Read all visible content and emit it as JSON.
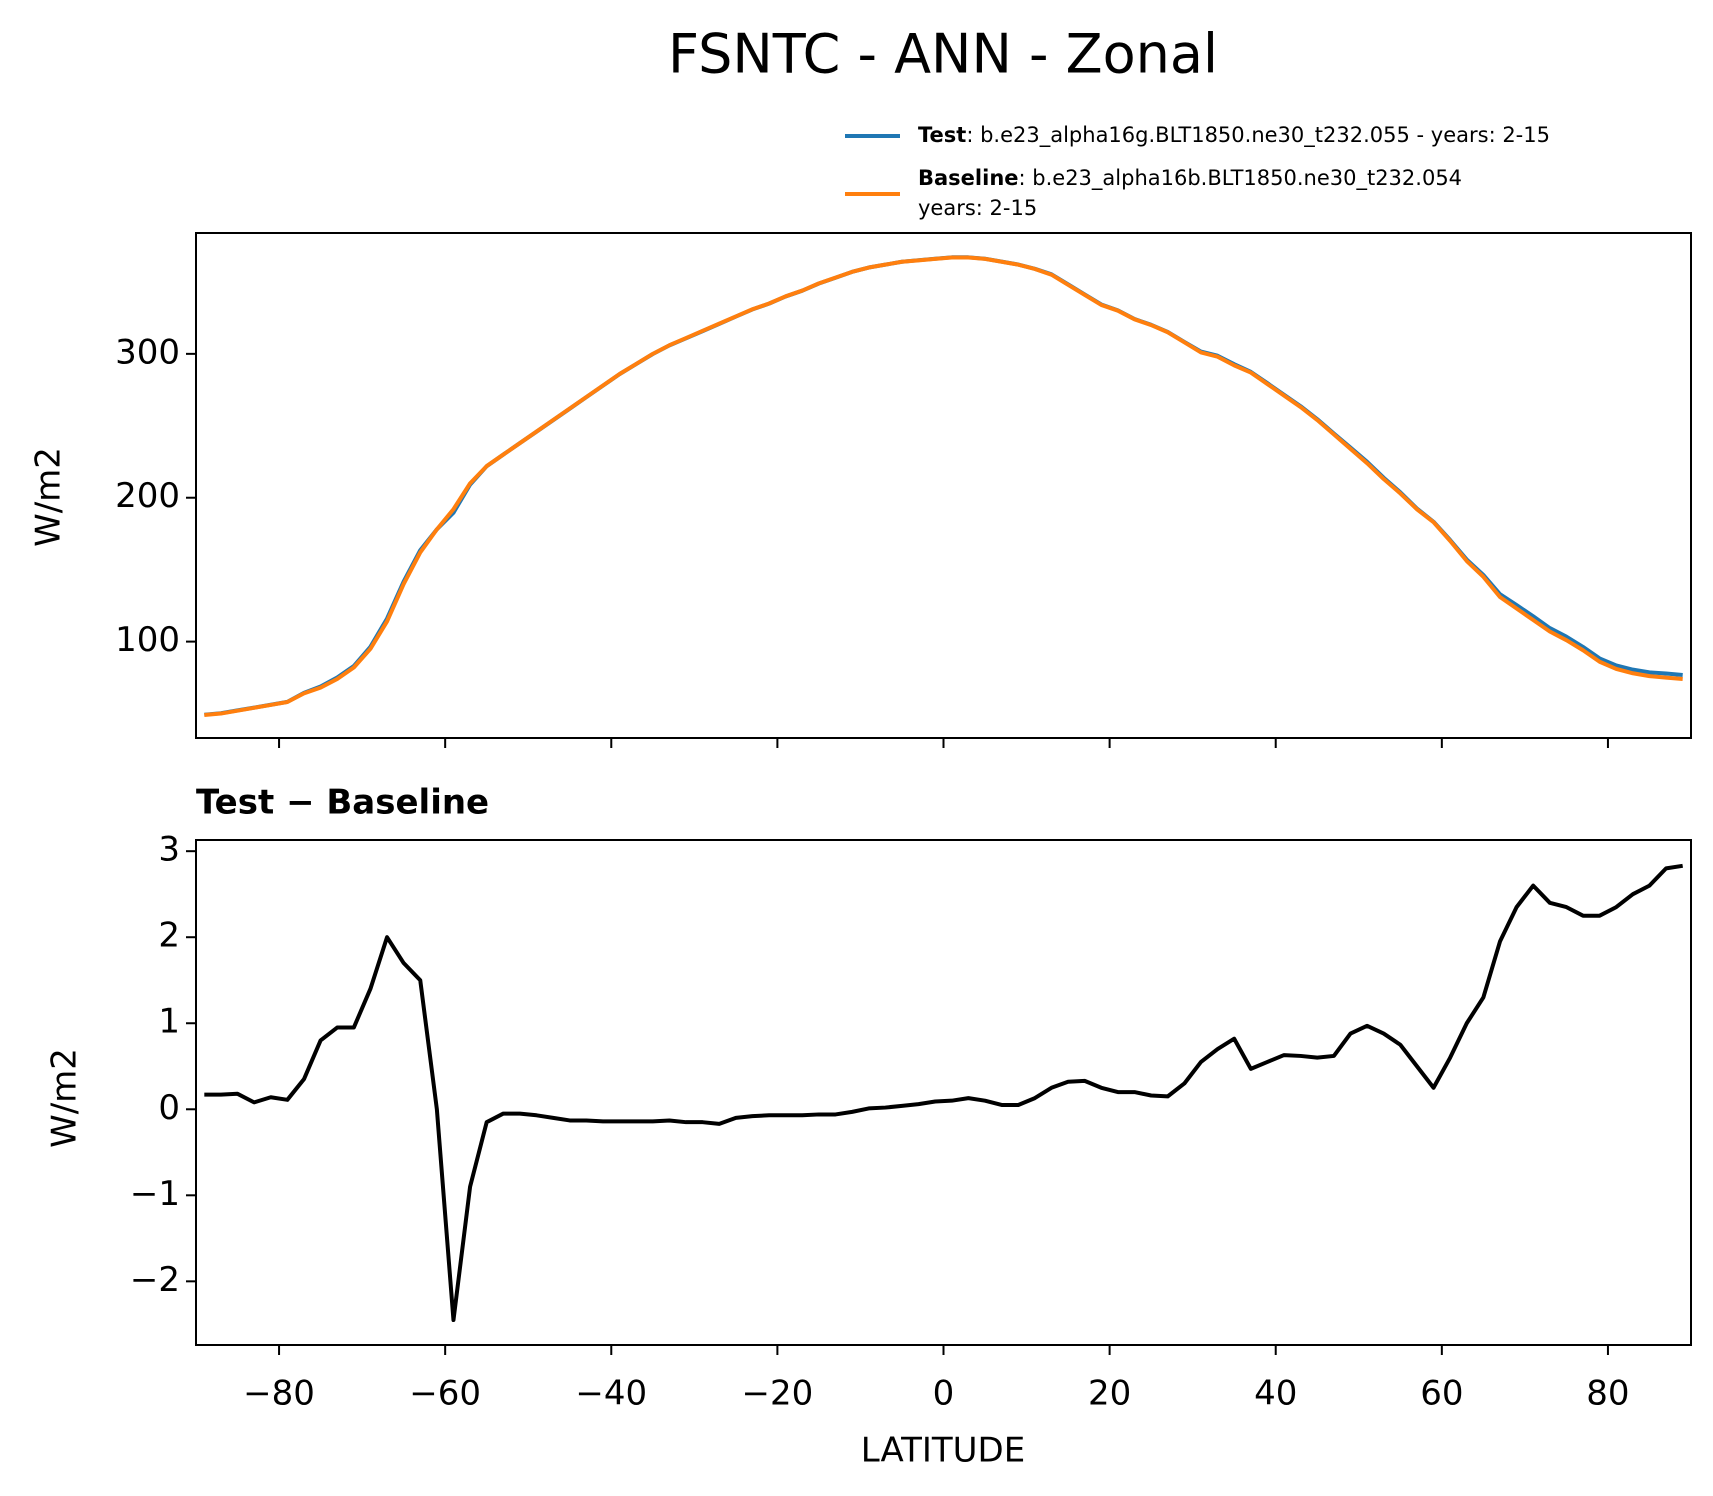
{
  "chart_data": [
    {
      "type": "line",
      "title": "FSNTC - ANN - Zonal",
      "ylabel": "W/m2",
      "x": [
        -89,
        -87,
        -85,
        -83,
        -81,
        -79,
        -77,
        -75,
        -73,
        -71,
        -69,
        -67,
        -65,
        -63,
        -61,
        -59,
        -57,
        -55,
        -53,
        -51,
        -49,
        -47,
        -45,
        -43,
        -41,
        -39,
        -37,
        -35,
        -33,
        -31,
        -29,
        -27,
        -25,
        -23,
        -21,
        -19,
        -17,
        -15,
        -13,
        -11,
        -9,
        -7,
        -5,
        -3,
        -1,
        1,
        3,
        5,
        7,
        9,
        11,
        13,
        15,
        17,
        19,
        21,
        23,
        25,
        27,
        29,
        31,
        33,
        35,
        37,
        39,
        41,
        43,
        45,
        47,
        49,
        51,
        53,
        55,
        57,
        59,
        61,
        63,
        65,
        67,
        69,
        71,
        73,
        75,
        77,
        79,
        81,
        83,
        85,
        87,
        89
      ],
      "series": [
        {
          "name": "Test",
          "description": [
            ": b.e23_alpha16g.BLT1850.ne30_t232.055 - years: 2-15"
          ],
          "color": "#1f77b4",
          "values": [
            49.2,
            50.2,
            52.2,
            54.1,
            56.1,
            58.1,
            64.4,
            68.8,
            75.0,
            83.0,
            96.4,
            116.0,
            141.7,
            163.5,
            178.0,
            189.6,
            209.1,
            221.9,
            230.0,
            238.0,
            245.9,
            253.9,
            261.9,
            269.9,
            277.9,
            285.9,
            292.9,
            299.9,
            305.9,
            310.8,
            315.8,
            320.8,
            325.9,
            330.9,
            334.9,
            339.9,
            343.9,
            348.9,
            352.9,
            357.0,
            360.0,
            362.0,
            364.0,
            365.1,
            366.1,
            367.1,
            367.1,
            366.1,
            364.1,
            362.1,
            359.1,
            355.3,
            348.3,
            341.3,
            334.3,
            330.2,
            324.2,
            320.2,
            315.2,
            308.3,
            301.6,
            298.7,
            292.8,
            287.5,
            279.6,
            271.6,
            263.6,
            254.6,
            244.6,
            234.9,
            225.0,
            213.9,
            203.8,
            192.5,
            183.3,
            170.6,
            157.0,
            146.3,
            133.0,
            125.4,
            117.6,
            109.4,
            103.4,
            96.3,
            88.3,
            83.4,
            80.5,
            78.6,
            77.8,
            76.8
          ]
        },
        {
          "name": "Baseline",
          "description": [
            ": b.e23_alpha16b.BLT1850.ne30_t232.054",
            "years: 2-15"
          ],
          "color": "#ff7f0e",
          "values": [
            49,
            50,
            52,
            54,
            56,
            58,
            64,
            68,
            74,
            82,
            95,
            114,
            140,
            162,
            178,
            192,
            210,
            222,
            230,
            238,
            246,
            254,
            262,
            270,
            278,
            286,
            293,
            300,
            306,
            311,
            316,
            321,
            326,
            331,
            335,
            340,
            344,
            349,
            353,
            357,
            360,
            362,
            364,
            365,
            366,
            367,
            367,
            366,
            364,
            362,
            359,
            355,
            348,
            341,
            334,
            330,
            324,
            320,
            315,
            308,
            301,
            298,
            292,
            287,
            279,
            271,
            263,
            254,
            244,
            234,
            224,
            213,
            203,
            192,
            183,
            170,
            156,
            145,
            131,
            123,
            115,
            107,
            101,
            94,
            86,
            81,
            78,
            76,
            75,
            74
          ]
        }
      ],
      "xlim": [
        -90,
        90
      ],
      "xticks": [
        -80,
        -60,
        -40,
        -20,
        0,
        20,
        40,
        60,
        80
      ],
      "ylim": [
        33,
        384
      ],
      "yticks": [
        100,
        200,
        300
      ]
    },
    {
      "type": "line",
      "title": "Test − Baseline",
      "ylabel": "W/m2",
      "xlabel": "LATITUDE",
      "x": [
        -89,
        -87,
        -85,
        -83,
        -81,
        -79,
        -77,
        -75,
        -73,
        -71,
        -69,
        -67,
        -65,
        -63,
        -61,
        -59,
        -57,
        -55,
        -53,
        -51,
        -49,
        -47,
        -45,
        -43,
        -41,
        -39,
        -37,
        -35,
        -33,
        -31,
        -29,
        -27,
        -25,
        -23,
        -21,
        -19,
        -17,
        -15,
        -13,
        -11,
        -9,
        -7,
        -5,
        -3,
        -1,
        1,
        3,
        5,
        7,
        9,
        11,
        13,
        15,
        17,
        19,
        21,
        23,
        25,
        27,
        29,
        31,
        33,
        35,
        37,
        39,
        41,
        43,
        45,
        47,
        49,
        51,
        53,
        55,
        57,
        59,
        61,
        63,
        65,
        67,
        69,
        71,
        73,
        75,
        77,
        79,
        81,
        83,
        85,
        87,
        89
      ],
      "series": [
        {
          "color": "#000000",
          "values": [
            0.17,
            0.17,
            0.18,
            0.08,
            0.14,
            0.11,
            0.35,
            0.8,
            0.95,
            0.95,
            1.4,
            2.0,
            1.7,
            1.5,
            0.0,
            -2.45,
            -0.9,
            -0.15,
            -0.05,
            -0.05,
            -0.07,
            -0.1,
            -0.13,
            -0.13,
            -0.14,
            -0.14,
            -0.14,
            -0.14,
            -0.13,
            -0.15,
            -0.15,
            -0.17,
            -0.1,
            -0.08,
            -0.07,
            -0.07,
            -0.07,
            -0.06,
            -0.06,
            -0.03,
            0.01,
            0.02,
            0.04,
            0.06,
            0.09,
            0.1,
            0.13,
            0.1,
            0.05,
            0.05,
            0.13,
            0.25,
            0.32,
            0.33,
            0.25,
            0.2,
            0.2,
            0.16,
            0.15,
            0.3,
            0.55,
            0.7,
            0.82,
            0.47,
            0.55,
            0.63,
            0.62,
            0.6,
            0.62,
            0.88,
            0.97,
            0.88,
            0.75,
            0.5,
            0.25,
            0.6,
            1.0,
            1.3,
            1.95,
            2.35,
            2.6,
            2.4,
            2.35,
            2.25,
            2.25,
            2.35,
            2.5,
            2.6,
            2.8,
            2.83
          ]
        }
      ],
      "xlim": [
        -90,
        90
      ],
      "xticks": [
        {
          "value": -80,
          "label": "−80"
        },
        {
          "value": -60,
          "label": "−60"
        },
        {
          "value": -40,
          "label": "−40"
        },
        {
          "value": -20,
          "label": "−20"
        },
        0,
        20,
        40,
        60,
        80
      ],
      "ylim": [
        -2.74,
        3.13
      ],
      "yticks": [
        {
          "value": -2,
          "label": "−2"
        },
        {
          "value": -1,
          "label": "−1"
        },
        0,
        1,
        2,
        3
      ]
    }
  ]
}
